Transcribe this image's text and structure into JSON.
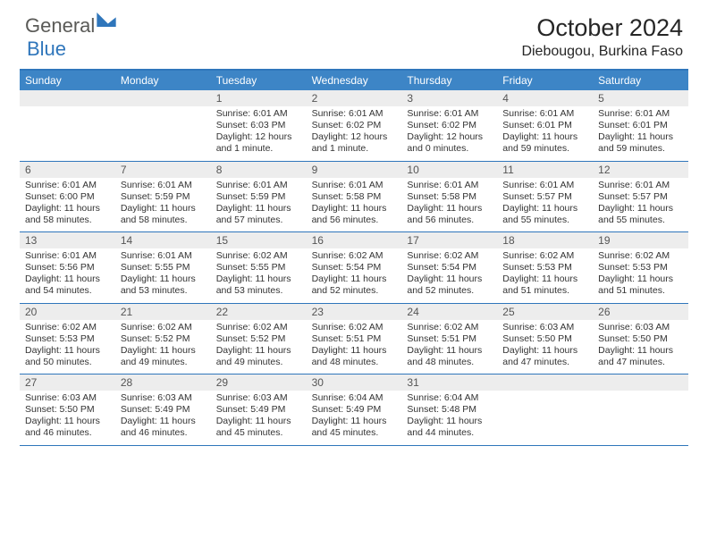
{
  "logo": {
    "part1": "General",
    "part2": "Blue"
  },
  "title": "October 2024",
  "location": "Diebougou, Burkina Faso",
  "colors": {
    "header_bg": "#3d85c6",
    "border": "#2f76bb",
    "num_bg": "#ededed",
    "text": "#333333",
    "white": "#ffffff"
  },
  "day_headers": [
    "Sunday",
    "Monday",
    "Tuesday",
    "Wednesday",
    "Thursday",
    "Friday",
    "Saturday"
  ],
  "weeks": [
    [
      {
        "n": "",
        "l1": "",
        "l2": "",
        "l3": "",
        "l4": ""
      },
      {
        "n": "",
        "l1": "",
        "l2": "",
        "l3": "",
        "l4": ""
      },
      {
        "n": "1",
        "l1": "Sunrise: 6:01 AM",
        "l2": "Sunset: 6:03 PM",
        "l3": "Daylight: 12 hours",
        "l4": "and 1 minute."
      },
      {
        "n": "2",
        "l1": "Sunrise: 6:01 AM",
        "l2": "Sunset: 6:02 PM",
        "l3": "Daylight: 12 hours",
        "l4": "and 1 minute."
      },
      {
        "n": "3",
        "l1": "Sunrise: 6:01 AM",
        "l2": "Sunset: 6:02 PM",
        "l3": "Daylight: 12 hours",
        "l4": "and 0 minutes."
      },
      {
        "n": "4",
        "l1": "Sunrise: 6:01 AM",
        "l2": "Sunset: 6:01 PM",
        "l3": "Daylight: 11 hours",
        "l4": "and 59 minutes."
      },
      {
        "n": "5",
        "l1": "Sunrise: 6:01 AM",
        "l2": "Sunset: 6:01 PM",
        "l3": "Daylight: 11 hours",
        "l4": "and 59 minutes."
      }
    ],
    [
      {
        "n": "6",
        "l1": "Sunrise: 6:01 AM",
        "l2": "Sunset: 6:00 PM",
        "l3": "Daylight: 11 hours",
        "l4": "and 58 minutes."
      },
      {
        "n": "7",
        "l1": "Sunrise: 6:01 AM",
        "l2": "Sunset: 5:59 PM",
        "l3": "Daylight: 11 hours",
        "l4": "and 58 minutes."
      },
      {
        "n": "8",
        "l1": "Sunrise: 6:01 AM",
        "l2": "Sunset: 5:59 PM",
        "l3": "Daylight: 11 hours",
        "l4": "and 57 minutes."
      },
      {
        "n": "9",
        "l1": "Sunrise: 6:01 AM",
        "l2": "Sunset: 5:58 PM",
        "l3": "Daylight: 11 hours",
        "l4": "and 56 minutes."
      },
      {
        "n": "10",
        "l1": "Sunrise: 6:01 AM",
        "l2": "Sunset: 5:58 PM",
        "l3": "Daylight: 11 hours",
        "l4": "and 56 minutes."
      },
      {
        "n": "11",
        "l1": "Sunrise: 6:01 AM",
        "l2": "Sunset: 5:57 PM",
        "l3": "Daylight: 11 hours",
        "l4": "and 55 minutes."
      },
      {
        "n": "12",
        "l1": "Sunrise: 6:01 AM",
        "l2": "Sunset: 5:57 PM",
        "l3": "Daylight: 11 hours",
        "l4": "and 55 minutes."
      }
    ],
    [
      {
        "n": "13",
        "l1": "Sunrise: 6:01 AM",
        "l2": "Sunset: 5:56 PM",
        "l3": "Daylight: 11 hours",
        "l4": "and 54 minutes."
      },
      {
        "n": "14",
        "l1": "Sunrise: 6:01 AM",
        "l2": "Sunset: 5:55 PM",
        "l3": "Daylight: 11 hours",
        "l4": "and 53 minutes."
      },
      {
        "n": "15",
        "l1": "Sunrise: 6:02 AM",
        "l2": "Sunset: 5:55 PM",
        "l3": "Daylight: 11 hours",
        "l4": "and 53 minutes."
      },
      {
        "n": "16",
        "l1": "Sunrise: 6:02 AM",
        "l2": "Sunset: 5:54 PM",
        "l3": "Daylight: 11 hours",
        "l4": "and 52 minutes."
      },
      {
        "n": "17",
        "l1": "Sunrise: 6:02 AM",
        "l2": "Sunset: 5:54 PM",
        "l3": "Daylight: 11 hours",
        "l4": "and 52 minutes."
      },
      {
        "n": "18",
        "l1": "Sunrise: 6:02 AM",
        "l2": "Sunset: 5:53 PM",
        "l3": "Daylight: 11 hours",
        "l4": "and 51 minutes."
      },
      {
        "n": "19",
        "l1": "Sunrise: 6:02 AM",
        "l2": "Sunset: 5:53 PM",
        "l3": "Daylight: 11 hours",
        "l4": "and 51 minutes."
      }
    ],
    [
      {
        "n": "20",
        "l1": "Sunrise: 6:02 AM",
        "l2": "Sunset: 5:53 PM",
        "l3": "Daylight: 11 hours",
        "l4": "and 50 minutes."
      },
      {
        "n": "21",
        "l1": "Sunrise: 6:02 AM",
        "l2": "Sunset: 5:52 PM",
        "l3": "Daylight: 11 hours",
        "l4": "and 49 minutes."
      },
      {
        "n": "22",
        "l1": "Sunrise: 6:02 AM",
        "l2": "Sunset: 5:52 PM",
        "l3": "Daylight: 11 hours",
        "l4": "and 49 minutes."
      },
      {
        "n": "23",
        "l1": "Sunrise: 6:02 AM",
        "l2": "Sunset: 5:51 PM",
        "l3": "Daylight: 11 hours",
        "l4": "and 48 minutes."
      },
      {
        "n": "24",
        "l1": "Sunrise: 6:02 AM",
        "l2": "Sunset: 5:51 PM",
        "l3": "Daylight: 11 hours",
        "l4": "and 48 minutes."
      },
      {
        "n": "25",
        "l1": "Sunrise: 6:03 AM",
        "l2": "Sunset: 5:50 PM",
        "l3": "Daylight: 11 hours",
        "l4": "and 47 minutes."
      },
      {
        "n": "26",
        "l1": "Sunrise: 6:03 AM",
        "l2": "Sunset: 5:50 PM",
        "l3": "Daylight: 11 hours",
        "l4": "and 47 minutes."
      }
    ],
    [
      {
        "n": "27",
        "l1": "Sunrise: 6:03 AM",
        "l2": "Sunset: 5:50 PM",
        "l3": "Daylight: 11 hours",
        "l4": "and 46 minutes."
      },
      {
        "n": "28",
        "l1": "Sunrise: 6:03 AM",
        "l2": "Sunset: 5:49 PM",
        "l3": "Daylight: 11 hours",
        "l4": "and 46 minutes."
      },
      {
        "n": "29",
        "l1": "Sunrise: 6:03 AM",
        "l2": "Sunset: 5:49 PM",
        "l3": "Daylight: 11 hours",
        "l4": "and 45 minutes."
      },
      {
        "n": "30",
        "l1": "Sunrise: 6:04 AM",
        "l2": "Sunset: 5:49 PM",
        "l3": "Daylight: 11 hours",
        "l4": "and 45 minutes."
      },
      {
        "n": "31",
        "l1": "Sunrise: 6:04 AM",
        "l2": "Sunset: 5:48 PM",
        "l3": "Daylight: 11 hours",
        "l4": "and 44 minutes."
      },
      {
        "n": "",
        "l1": "",
        "l2": "",
        "l3": "",
        "l4": ""
      },
      {
        "n": "",
        "l1": "",
        "l2": "",
        "l3": "",
        "l4": ""
      }
    ]
  ]
}
